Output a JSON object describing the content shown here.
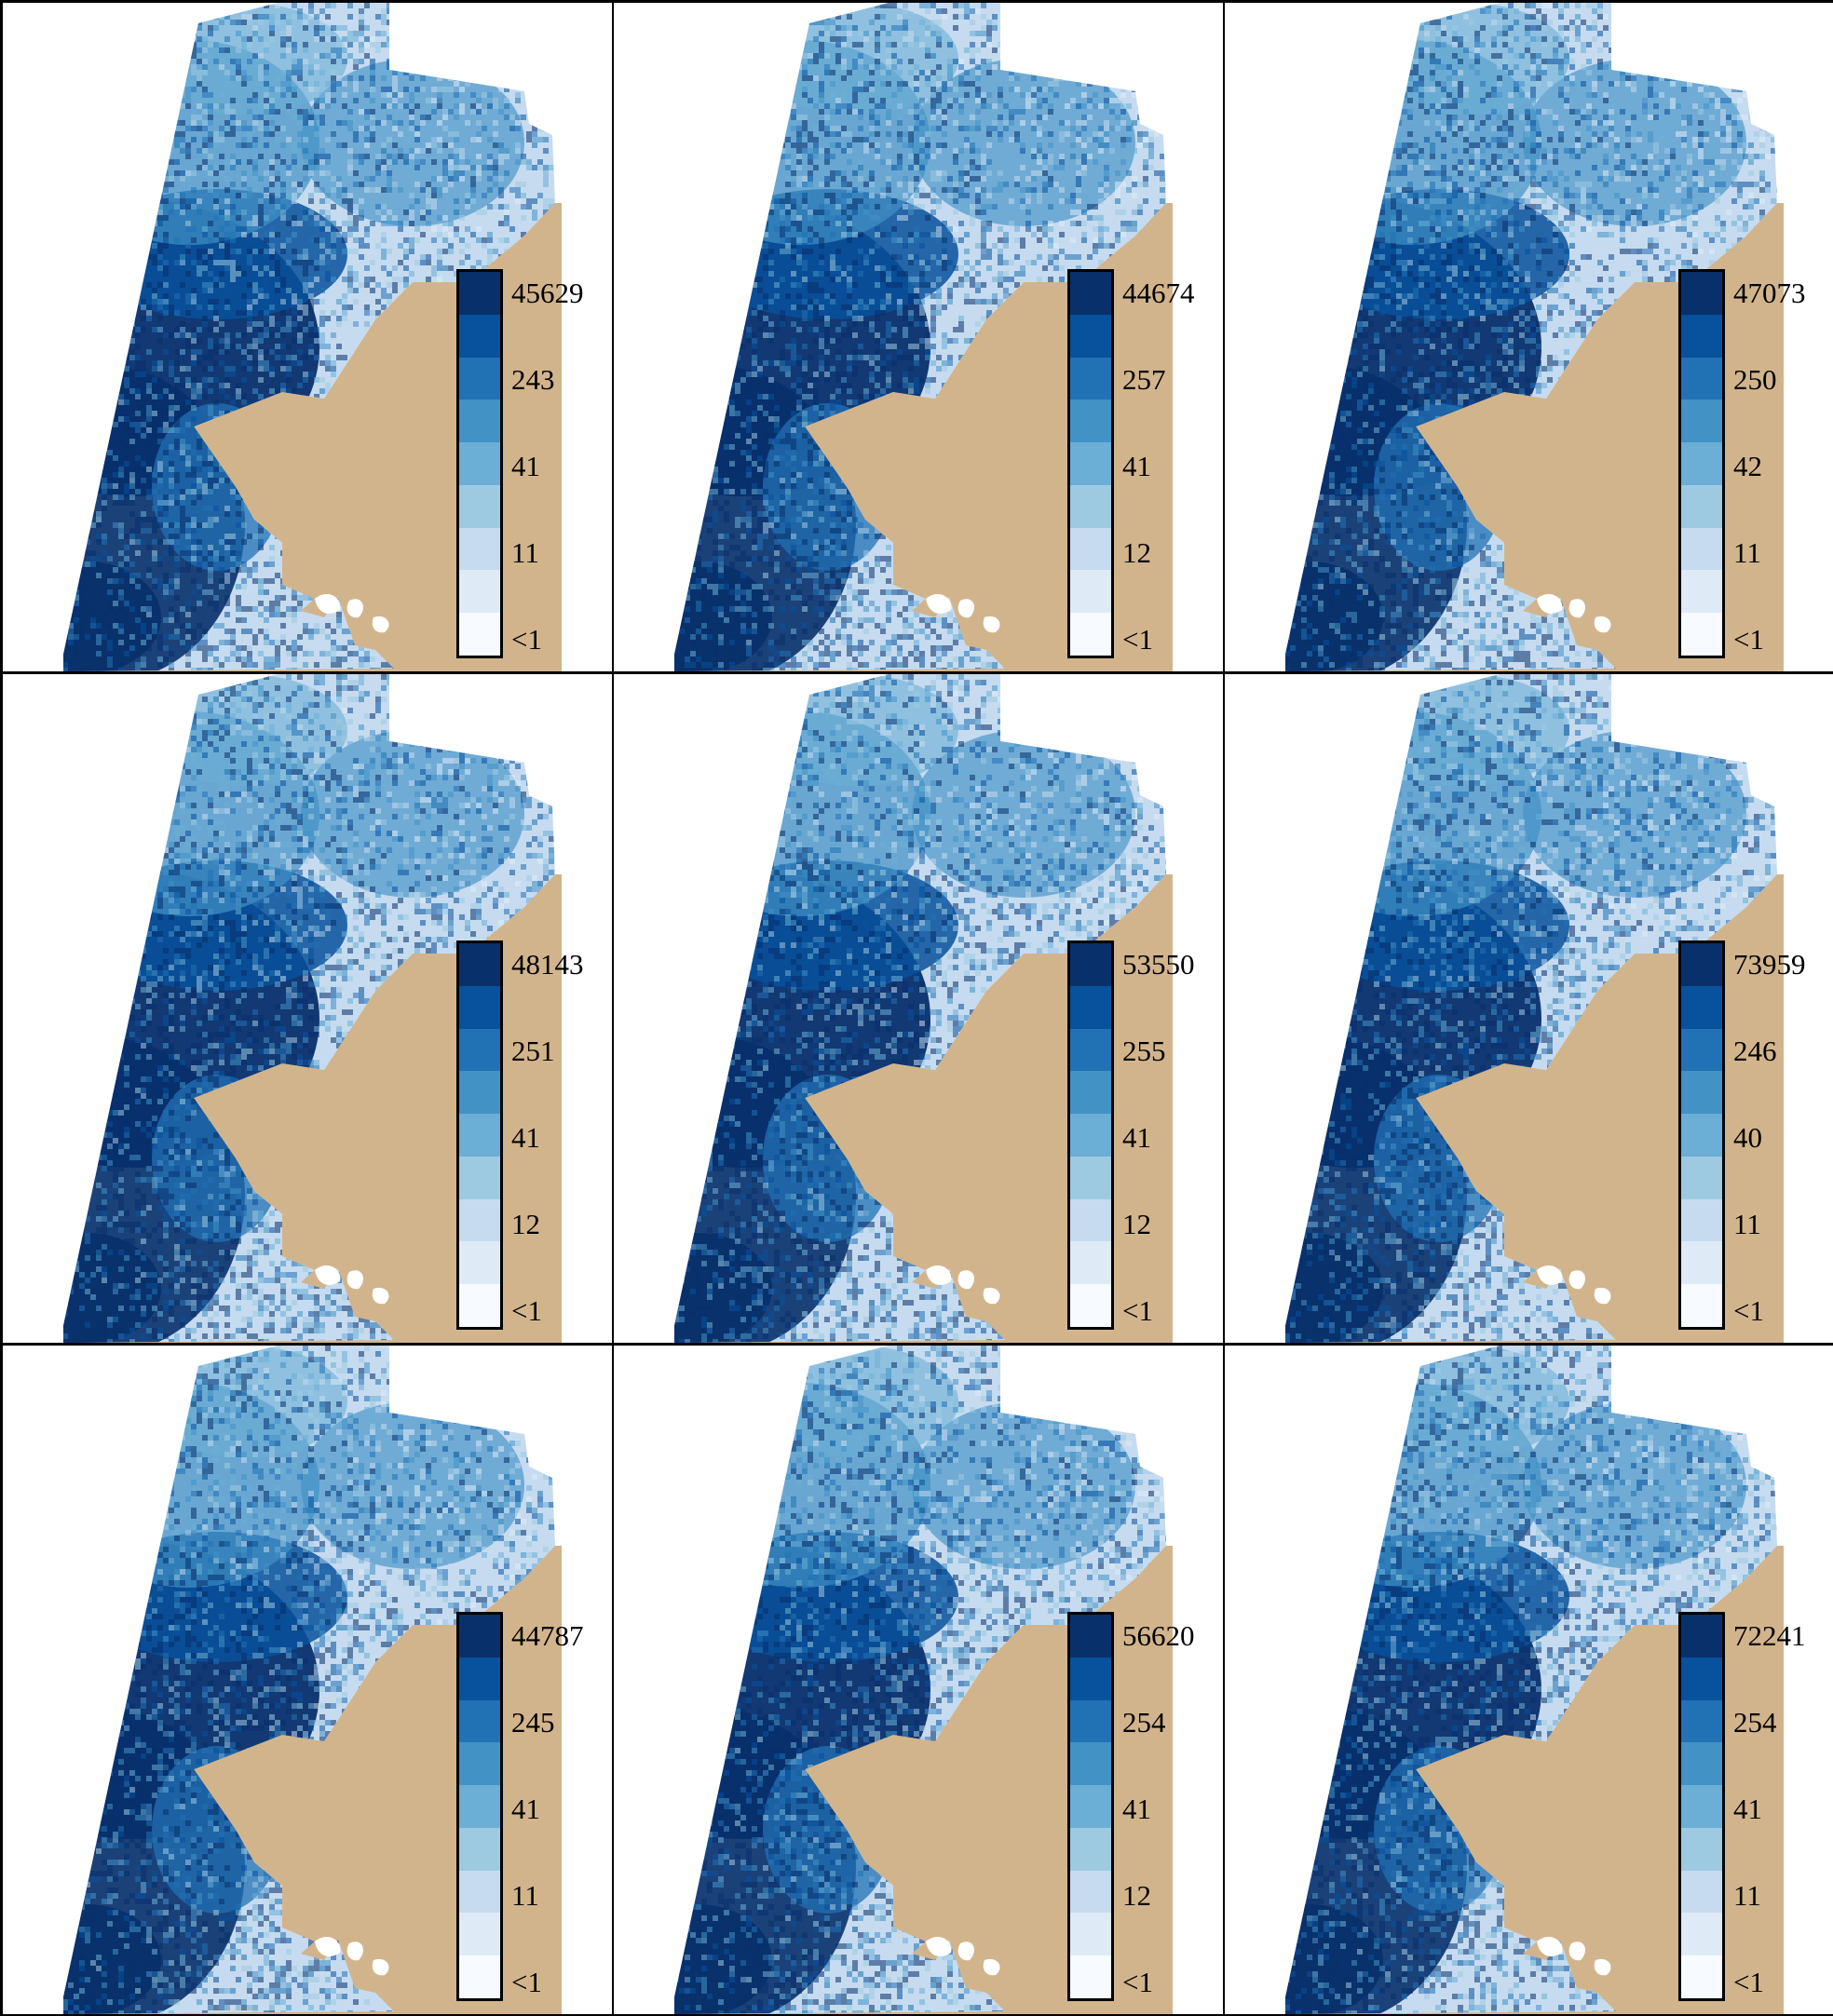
{
  "palette": [
    "#08306b",
    "#08519c",
    "#2171b5",
    "#4292c6",
    "#6baed6",
    "#9ecae1",
    "#c6dbef",
    "#deebf7",
    "#f7fbff"
  ],
  "water_mid_color": "#4a90c8",
  "land_color": "#d2b48c",
  "panels": [
    {
      "legend": [
        "45629",
        "243",
        "41",
        "11",
        "<1"
      ],
      "intensity": 0.52
    },
    {
      "legend": [
        "44674",
        "257",
        "41",
        "12",
        "<1"
      ],
      "intensity": 0.56
    },
    {
      "legend": [
        "47073",
        "250",
        "42",
        "11",
        "<1"
      ],
      "intensity": 0.54
    },
    {
      "legend": [
        "48143",
        "251",
        "41",
        "12",
        "<1"
      ],
      "intensity": 0.55
    },
    {
      "legend": [
        "53550",
        "255",
        "41",
        "12",
        "<1"
      ],
      "intensity": 0.57
    },
    {
      "legend": [
        "73959",
        "246",
        "40",
        "11",
        "<1"
      ],
      "intensity": 0.53
    },
    {
      "legend": [
        "44787",
        "245",
        "41",
        "11",
        "<1"
      ],
      "intensity": 0.51
    },
    {
      "legend": [
        "56620",
        "254",
        "41",
        "12",
        "<1"
      ],
      "intensity": 0.58
    },
    {
      "legend": [
        "72241",
        "254",
        "41",
        "11",
        "<1"
      ],
      "intensity": 0.55
    }
  ]
}
